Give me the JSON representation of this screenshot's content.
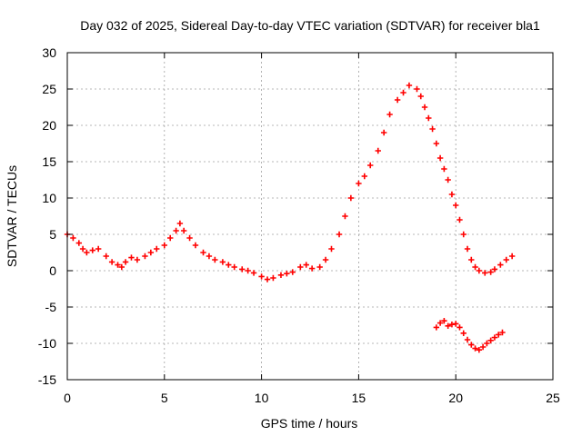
{
  "chart_data": {
    "type": "scatter",
    "title": "Day 032 of 2025, Sidereal Day-to-day VTEC variation (SDTVAR) for receiver bla1",
    "xlabel": "GPS time / hours",
    "ylabel": "SDTVAR / TECUs",
    "xlim": [
      0,
      25
    ],
    "ylim": [
      -15,
      30
    ],
    "xticks": [
      0,
      5,
      10,
      15,
      20,
      25
    ],
    "yticks": [
      -15,
      -10,
      -5,
      0,
      5,
      10,
      15,
      20,
      25,
      30
    ],
    "xtick_labels": [
      "0",
      "5",
      "10",
      "15",
      "20",
      "25"
    ],
    "ytick_labels": [
      "-15",
      "-10",
      "-5",
      "0",
      "5",
      "10",
      "15",
      "20",
      "25",
      "30"
    ],
    "grid": true,
    "marker": "+",
    "color": "#ff0000",
    "series": [
      {
        "name": "main",
        "x": [
          0.0,
          0.3,
          0.6,
          0.8,
          1.0,
          1.3,
          1.6,
          2.0,
          2.3,
          2.6,
          2.8,
          3.0,
          3.3,
          3.6,
          4.0,
          4.3,
          4.6,
          5.0,
          5.3,
          5.6,
          5.8,
          6.0,
          6.3,
          6.6,
          7.0,
          7.3,
          7.6,
          8.0,
          8.3,
          8.6,
          9.0,
          9.3,
          9.6,
          10.0,
          10.3,
          10.6,
          11.0,
          11.3,
          11.6,
          12.0,
          12.3,
          12.6,
          13.0,
          13.3,
          13.6,
          14.0,
          14.3,
          14.6,
          15.0,
          15.3,
          15.6,
          16.0,
          16.3,
          16.6,
          17.0,
          17.3,
          17.6,
          18.0,
          18.2,
          18.4,
          18.6,
          18.8,
          19.0,
          19.2,
          19.4,
          19.6,
          19.8,
          20.0,
          20.2,
          20.4,
          20.6,
          20.8,
          21.0,
          21.2,
          21.5,
          21.8,
          22.0,
          22.3,
          22.6,
          22.9
        ],
        "y": [
          5.0,
          4.5,
          3.8,
          3.0,
          2.5,
          2.8,
          3.0,
          2.0,
          1.2,
          0.8,
          0.5,
          1.2,
          1.8,
          1.5,
          2.0,
          2.5,
          3.0,
          3.5,
          4.5,
          5.5,
          6.5,
          5.5,
          4.5,
          3.5,
          2.5,
          2.0,
          1.5,
          1.2,
          0.8,
          0.5,
          0.2,
          0.0,
          -0.3,
          -0.8,
          -1.2,
          -1.0,
          -0.6,
          -0.4,
          -0.2,
          0.5,
          0.8,
          0.3,
          0.5,
          1.5,
          3.0,
          5.0,
          7.5,
          10.0,
          12.0,
          13.0,
          14.5,
          16.5,
          19.0,
          21.5,
          23.5,
          24.5,
          25.5,
          25.0,
          24.0,
          22.5,
          21.0,
          19.5,
          17.5,
          15.5,
          14.0,
          12.5,
          10.5,
          9.0,
          7.0,
          5.0,
          3.0,
          1.5,
          0.5,
          0.0,
          -0.3,
          -0.2,
          0.2,
          0.8,
          1.5,
          2.0
        ]
      },
      {
        "name": "lower",
        "x": [
          19.0,
          19.2,
          19.4,
          19.6,
          19.8,
          20.0,
          20.2,
          20.4,
          20.6,
          20.8,
          21.0,
          21.2,
          21.4,
          21.6,
          21.8,
          22.0,
          22.2,
          22.4
        ],
        "y": [
          -7.8,
          -7.2,
          -6.9,
          -7.6,
          -7.4,
          -7.3,
          -7.8,
          -8.6,
          -9.5,
          -10.2,
          -10.7,
          -10.9,
          -10.5,
          -10.0,
          -9.6,
          -9.2,
          -8.8,
          -8.5
        ]
      }
    ]
  }
}
